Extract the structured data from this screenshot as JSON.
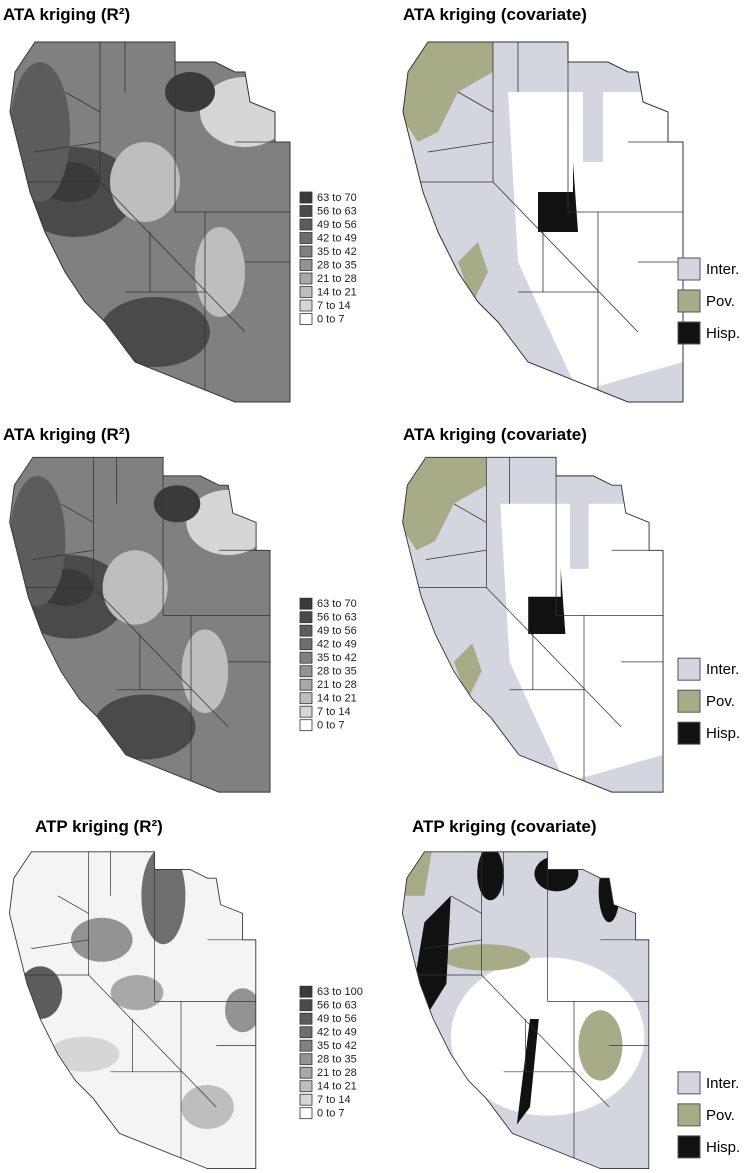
{
  "panels": [
    {
      "title": "ATA kriging (R²)",
      "kind": "r2",
      "legend": [
        {
          "label": "63 to 70",
          "color": "#3a3a3a"
        },
        {
          "label": "56 to 63",
          "color": "#4a4a4a"
        },
        {
          "label": "49 to 56",
          "color": "#5c5c5c"
        },
        {
          "label": "42 to 49",
          "color": "#6e6e6e"
        },
        {
          "label": "35 to 42",
          "color": "#808080"
        },
        {
          "label": "28 to 35",
          "color": "#939393"
        },
        {
          "label": "21 to 28",
          "color": "#a8a8a8"
        },
        {
          "label": "14 to 21",
          "color": "#bebebe"
        },
        {
          "label": "7 to 14",
          "color": "#d6d6d6"
        },
        {
          "label": "0 to 7",
          "color": "#ffffff"
        }
      ]
    },
    {
      "title": "ATA kriging (covariate)",
      "kind": "cov",
      "legend": [
        {
          "label": "Inter.",
          "color": "#d3d6df"
        },
        {
          "label": "Pov.",
          "color": "#a8ab88"
        },
        {
          "label": "Hisp.",
          "color": "#111111"
        }
      ]
    },
    {
      "title": "ATA kriging (R²)",
      "kind": "r2",
      "legend": [
        {
          "label": "63 to 70",
          "color": "#3a3a3a"
        },
        {
          "label": "56 to 63",
          "color": "#4a4a4a"
        },
        {
          "label": "49 to 56",
          "color": "#5c5c5c"
        },
        {
          "label": "42 to 49",
          "color": "#6e6e6e"
        },
        {
          "label": "35 to 42",
          "color": "#808080"
        },
        {
          "label": "28 to 35",
          "color": "#939393"
        },
        {
          "label": "21 to 28",
          "color": "#a8a8a8"
        },
        {
          "label": "14 to 21",
          "color": "#bebebe"
        },
        {
          "label": "7 to 14",
          "color": "#d6d6d6"
        },
        {
          "label": "0 to 7",
          "color": "#ffffff"
        }
      ]
    },
    {
      "title": "ATA kriging (covariate)",
      "kind": "cov",
      "legend": [
        {
          "label": "Inter.",
          "color": "#d3d6df"
        },
        {
          "label": "Pov.",
          "color": "#a8ab88"
        },
        {
          "label": "Hisp.",
          "color": "#111111"
        }
      ]
    },
    {
      "title": "ATP kriging (R²)",
      "kind": "r2light",
      "legend": [
        {
          "label": "63 to 100",
          "color": "#3a3a3a"
        },
        {
          "label": "56 to 63",
          "color": "#4a4a4a"
        },
        {
          "label": "49 to 56",
          "color": "#5c5c5c"
        },
        {
          "label": "42 to 49",
          "color": "#6e6e6e"
        },
        {
          "label": "35 to 42",
          "color": "#808080"
        },
        {
          "label": "28 to 35",
          "color": "#939393"
        },
        {
          "label": "21 to 28",
          "color": "#a8a8a8"
        },
        {
          "label": "14 to 21",
          "color": "#bebebe"
        },
        {
          "label": "7 to 14",
          "color": "#d6d6d6"
        },
        {
          "label": "0 to 7",
          "color": "#ffffff"
        }
      ]
    },
    {
      "title": "ATP kriging (covariate)",
      "kind": "covmix",
      "legend": [
        {
          "label": "Inter.",
          "color": "#d3d6df"
        },
        {
          "label": "Pov.",
          "color": "#a8ab88"
        },
        {
          "label": "Hisp.",
          "color": "#111111"
        }
      ]
    }
  ]
}
